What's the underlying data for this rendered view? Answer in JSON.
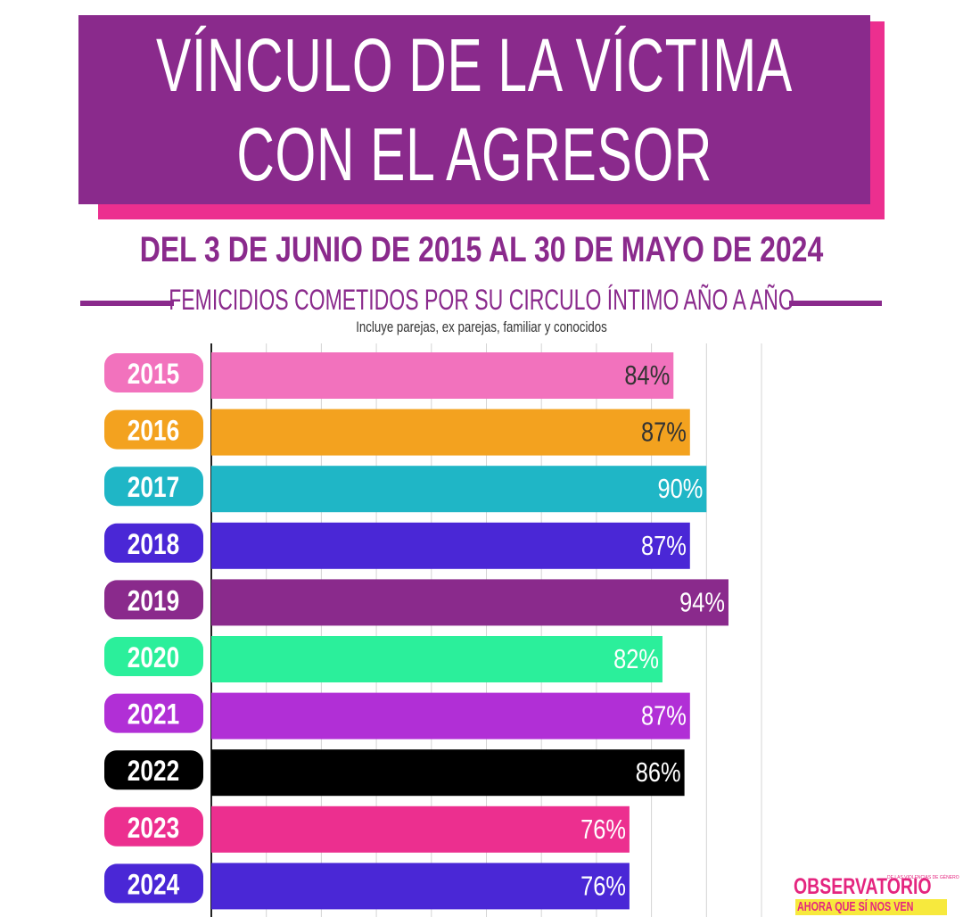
{
  "title_lines": [
    "VÍNCULO DE LA VÍCTIMA",
    "CON EL AGRESOR"
  ],
  "subtitle": "DEL 3 DE JUNIO DE 2015 AL 30 DE MAYO DE 2024",
  "section_heading": "FEMICIDIOS COMETIDOS POR SU CIRCULO ÍNTIMO AÑO A AÑO",
  "note": "Incluye parejas, ex parejas, familiar y conocidos",
  "logo": {
    "name": "OBSERVATORIO",
    "subname": "DE LAS VIOLENCIAS DE GÉNERO",
    "tagline": "AHORA QUE SÍ NOS VEN"
  },
  "chart_data": {
    "type": "bar",
    "orientation": "horizontal",
    "title": "VÍNCULO DE LA VÍCTIMA CON EL AGRESOR",
    "xlabel": "",
    "ylabel": "",
    "xlim": [
      0,
      100
    ],
    "grid": true,
    "categories": [
      "2015",
      "2016",
      "2017",
      "2018",
      "2019",
      "2020",
      "2021",
      "2022",
      "2023",
      "2024"
    ],
    "values": [
      84,
      87,
      90,
      87,
      94,
      82,
      87,
      86,
      76,
      76
    ],
    "value_labels": [
      "84%",
      "87%",
      "90%",
      "87%",
      "94%",
      "82%",
      "87%",
      "86%",
      "76%",
      "76%"
    ],
    "colors": [
      "#f272bd",
      "#f3a21f",
      "#1fb6c6",
      "#4a27d6",
      "#8a2a8c",
      "#2bef9b",
      "#b12fd6",
      "#000000",
      "#ec2f8f",
      "#4a27d6"
    ],
    "label_text_colors": [
      "#333333",
      "#333333",
      "#ffffff",
      "#ffffff",
      "#ffffff",
      "#ffffff",
      "#ffffff",
      "#ffffff",
      "#ffffff",
      "#ffffff"
    ]
  }
}
